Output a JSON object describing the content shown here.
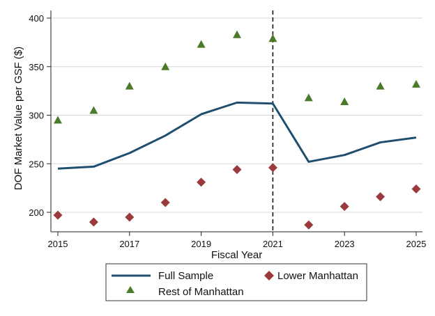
{
  "chart_data": {
    "type": "line",
    "xlabel": "Fiscal Year",
    "ylabel": "DOF Market Value per GSF ($)",
    "xlim": [
      2015,
      2025
    ],
    "ylim": [
      180,
      400
    ],
    "x_ticks": [
      "2015",
      "2017",
      "2019",
      "2021",
      "2023",
      "2025"
    ],
    "y_ticks": [
      "200",
      "250",
      "300",
      "350",
      "400"
    ],
    "vertical_reference_line": {
      "x": 2021,
      "style": "dashed"
    },
    "x": [
      2015,
      2016,
      2017,
      2018,
      2019,
      2020,
      2021,
      2022,
      2023,
      2024,
      2025
    ],
    "series": [
      {
        "name": "Full Sample",
        "kind": "line",
        "color": "#1f4e6e",
        "values": [
          245,
          247,
          261,
          279,
          301,
          313,
          312,
          252,
          259,
          272,
          277
        ]
      },
      {
        "name": "Lower Manhattan",
        "kind": "marker",
        "marker": "diamond",
        "color": "#9b3a3d",
        "values": [
          197,
          190,
          195,
          210,
          231,
          244,
          246,
          187,
          206,
          216,
          224
        ]
      },
      {
        "name": "Rest of Manhattan",
        "kind": "marker",
        "marker": "triangle",
        "color": "#4b7a2a",
        "values": [
          295,
          305,
          330,
          350,
          373,
          383,
          379,
          318,
          314,
          330,
          332
        ]
      }
    ],
    "legend": {
      "placement": "bottom",
      "entries": [
        "Full Sample",
        "Lower Manhattan",
        "Rest of Manhattan"
      ]
    }
  }
}
